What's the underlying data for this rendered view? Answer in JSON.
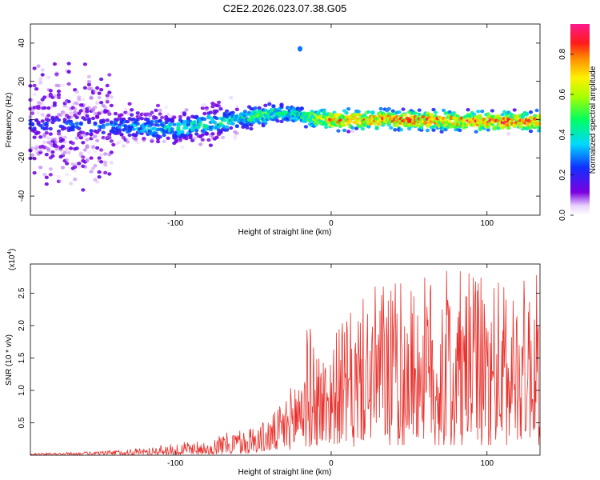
{
  "figure": {
    "title": "C2E2.2026.023.07.38.G05"
  },
  "chart_data": [
    {
      "type": "heatmap",
      "title": "C2E2.2026.023.07.38.G05",
      "xlabel": "Height of straight line (km)",
      "ylabel": "Frequency (Hz)",
      "xlim": [
        -193,
        134
      ],
      "ylim": [
        -50,
        50
      ],
      "xticks": [
        -100,
        0,
        100
      ],
      "xtick_labels": [
        "-100",
        "0",
        "100"
      ],
      "yticks": [
        -40,
        -20,
        0,
        20,
        40
      ],
      "ytick_labels": [
        "-40",
        "-20",
        "0",
        "20",
        "40"
      ],
      "colorbar": {
        "label": "Normalized spectral amplitude",
        "range": [
          0,
          0.95
        ],
        "ticks": [
          0.0,
          0.2,
          0.4,
          0.6,
          0.8
        ],
        "tick_labels": [
          "0.0",
          "0.2",
          "0.4",
          "0.6",
          "0.8"
        ],
        "colormap": "rainbow"
      },
      "ridge": {
        "description_points_x": [
          -193,
          -150,
          -100,
          -80,
          -60,
          -45,
          -35,
          -25,
          -15,
          0,
          50,
          100,
          134
        ],
        "frequency_hz": [
          -3,
          -3,
          -5,
          -2,
          0,
          2,
          4,
          3,
          1,
          0,
          0,
          -1,
          -1
        ],
        "peak_amplitude": [
          0.25,
          0.3,
          0.45,
          0.5,
          0.45,
          0.55,
          0.5,
          0.45,
          0.55,
          0.85,
          0.85,
          0.9,
          0.85
        ]
      },
      "isolated_feature": {
        "x": -20,
        "frequency_hz": 37,
        "amplitude": 0.3
      }
    },
    {
      "type": "line",
      "xlabel": "Height of straight line (km)",
      "ylabel": "SNR (10 * v/v)",
      "y_scale_label": "(x10",
      "y_scale_exponent": "4",
      "xlim": [
        -193,
        134
      ],
      "ylim": [
        0,
        2.95
      ],
      "xticks": [
        -100,
        0,
        100
      ],
      "xtick_labels": [
        "-100",
        "0",
        "100"
      ],
      "yticks": [
        0.5,
        1.0,
        1.5,
        2.0,
        2.5
      ],
      "ytick_labels": [
        "0.5",
        "1.0",
        "1.5",
        "2.0",
        "2.5"
      ],
      "series": [
        {
          "name": "SNR",
          "color": "#e8312c",
          "envelope_x": [
            -193,
            -150,
            -120,
            -100,
            -80,
            -60,
            -45,
            -35,
            -25,
            -15,
            -5,
            5,
            20,
            35,
            50,
            70,
            90,
            110,
            134
          ],
          "envelope_lower": [
            0.01,
            0.02,
            0.03,
            0.05,
            0.08,
            0.12,
            0.15,
            0.2,
            0.3,
            0.4,
            0.5,
            0.6,
            0.7,
            0.8,
            0.8,
            0.8,
            0.8,
            0.8,
            0.8
          ],
          "envelope_upper": [
            0.03,
            0.06,
            0.12,
            0.18,
            0.25,
            0.4,
            0.5,
            0.7,
            1.1,
            2.05,
            1.6,
            2.0,
            2.4,
            2.8,
            2.6,
            2.9,
            2.8,
            2.7,
            2.8
          ]
        }
      ]
    }
  ]
}
